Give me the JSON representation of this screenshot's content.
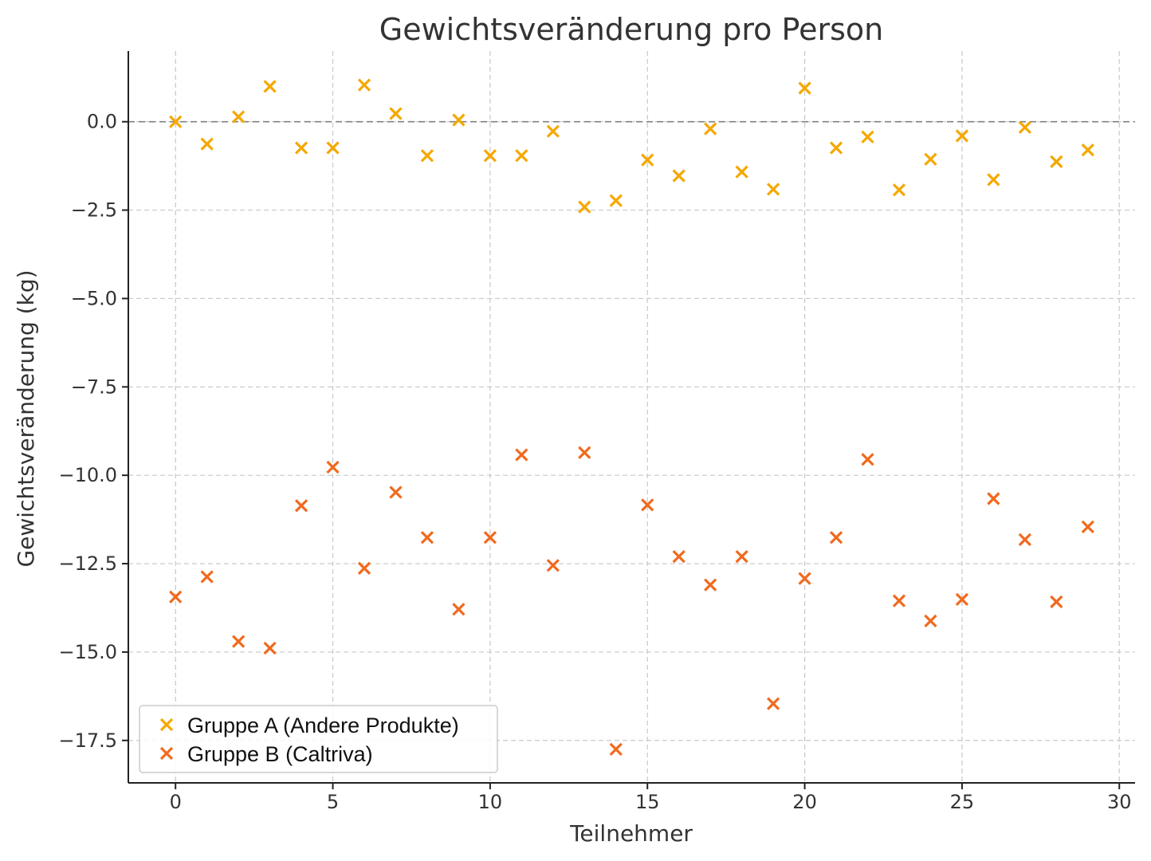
{
  "chart_data": {
    "type": "scatter",
    "title": "Gewichtsveränderung pro Person",
    "xlabel": "Teilnehmer",
    "ylabel": "Gewichtsveränderung (kg)",
    "xlim": [
      -1.5,
      30.5
    ],
    "ylim": [
      -18.7,
      2.0
    ],
    "xticks": [
      0,
      5,
      10,
      15,
      20,
      25,
      30
    ],
    "xtick_labels": [
      "0",
      "5",
      "10",
      "15",
      "20",
      "25",
      "30"
    ],
    "yticks": [
      0.0,
      -2.5,
      -5.0,
      -7.5,
      -10.0,
      -12.5,
      -15.0,
      -17.5
    ],
    "ytick_labels": [
      "0.0",
      "−2.5",
      "−5.0",
      "−7.5",
      "−10.0",
      "−12.5",
      "−15.0",
      "−17.5"
    ],
    "grid": true,
    "reference_line_y": 0,
    "marker": "x",
    "legend_position": "lower-left",
    "x": [
      0,
      1,
      2,
      3,
      4,
      5,
      6,
      7,
      8,
      9,
      10,
      11,
      12,
      13,
      14,
      15,
      16,
      17,
      18,
      19,
      20,
      21,
      22,
      23,
      24,
      25,
      26,
      27,
      28,
      29
    ],
    "series": [
      {
        "name": "Gruppe A (Andere Produkte)",
        "color": "#F5A800",
        "values": [
          0.0,
          -0.63,
          0.14,
          1.0,
          -0.74,
          -0.74,
          1.04,
          0.23,
          -0.96,
          0.05,
          -0.96,
          -0.96,
          -0.27,
          -2.41,
          -2.23,
          -1.08,
          -1.53,
          -0.2,
          -1.42,
          -1.91,
          0.95,
          -0.74,
          -0.43,
          -1.93,
          -1.06,
          -0.4,
          -1.64,
          -0.16,
          -1.13,
          -0.8
        ]
      },
      {
        "name": "Gruppe B (Caltriva)",
        "color": "#F06A1E",
        "values": [
          -13.44,
          -12.87,
          -14.7,
          -14.89,
          -10.86,
          -9.77,
          -12.63,
          -10.48,
          -11.76,
          -13.79,
          -11.76,
          -9.42,
          -12.55,
          -9.36,
          -17.75,
          -10.84,
          -12.3,
          -13.1,
          -12.3,
          -16.46,
          -12.92,
          -11.76,
          -9.55,
          -13.55,
          -14.12,
          -13.51,
          -10.66,
          -11.82,
          -13.58,
          -11.46
        ]
      }
    ]
  }
}
